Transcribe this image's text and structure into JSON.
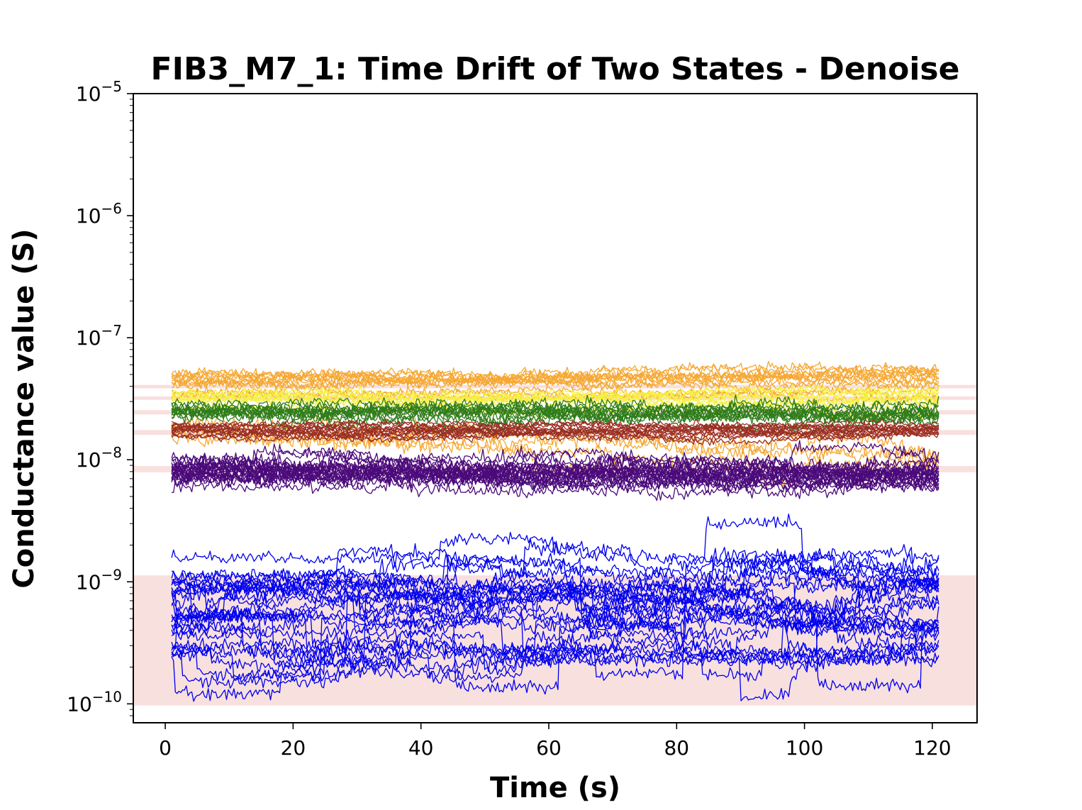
{
  "chart_data": {
    "type": "line",
    "title": "FIB3_M7_1: Time Drift of Two States - Denoise",
    "xlabel": "Time (s)",
    "ylabel": "Conductance value (S)",
    "xlim": [
      -5,
      127
    ],
    "ylim": [
      7e-11,
      1e-05
    ],
    "yscale": "log",
    "x_range": [
      1,
      121
    ],
    "grid": false,
    "x_ticks": [
      {
        "value": 0,
        "label": "0"
      },
      {
        "value": 20,
        "label": "20"
      },
      {
        "value": 40,
        "label": "40"
      },
      {
        "value": 60,
        "label": "60"
      },
      {
        "value": 80,
        "label": "80"
      },
      {
        "value": 100,
        "label": "100"
      },
      {
        "value": 120,
        "label": "120"
      }
    ],
    "y_ticks": [
      {
        "value": 1e-10,
        "base": "10",
        "exp": "−10"
      },
      {
        "value": 1e-09,
        "base": "10",
        "exp": "−9"
      },
      {
        "value": 1e-08,
        "base": "10",
        "exp": "−8"
      },
      {
        "value": 1e-07,
        "base": "10",
        "exp": "−7"
      },
      {
        "value": 1e-06,
        "base": "10",
        "exp": "−6"
      },
      {
        "value": 1e-05,
        "base": "10",
        "exp": "−5"
      }
    ],
    "shaded_bands": [
      {
        "from": 9.7e-11,
        "to": 1.13e-09
      },
      {
        "from": 7.9e-09,
        "to": 8.9e-09
      },
      {
        "from": 1.6e-08,
        "to": 1.75e-08
      },
      {
        "from": 2.35e-08,
        "to": 2.55e-08
      },
      {
        "from": 3.1e-08,
        "to": 3.3e-08
      },
      {
        "from": 3.85e-08,
        "to": 4.1e-08
      }
    ],
    "band_color": "#f8e0de",
    "level_groups": [
      {
        "color": "#f5a834",
        "count": 14,
        "level_min": 3.2e-08,
        "level_max": 5.2e-08,
        "noise": 0.035,
        "drift": 0.06,
        "events": 0.15
      },
      {
        "color": "#f5a834",
        "count": 4,
        "level_min": 1.5e-08,
        "level_max": 1.9e-08,
        "noise": 0.06,
        "drift": -0.45,
        "events": 0.6
      },
      {
        "color": "#f6f040",
        "count": 10,
        "level_min": 2.4e-08,
        "level_max": 3.6e-08,
        "noise": 0.03,
        "drift": 0.0,
        "events": 0.1
      },
      {
        "color": "#2e7d1a",
        "count": 12,
        "level_min": 2.2e-08,
        "level_max": 3.1e-08,
        "noise": 0.045,
        "drift": -0.05,
        "events": 0.3
      },
      {
        "color": "#9b2e22",
        "count": 14,
        "level_min": 1.55e-08,
        "level_max": 2e-08,
        "noise": 0.025,
        "drift": 0.0,
        "events": 0.1
      },
      {
        "color": "#4b0a7a",
        "count": 22,
        "level_min": 6e-09,
        "level_max": 1.05e-08,
        "noise": 0.05,
        "drift": -0.08,
        "events": 0.35
      },
      {
        "color": "#0000f0",
        "count": 30,
        "level_min": 2e-10,
        "level_max": 1.9e-09,
        "noise": 0.05,
        "drift": 0.0,
        "events": 1.0
      }
    ]
  }
}
